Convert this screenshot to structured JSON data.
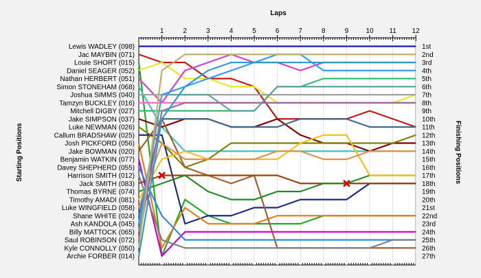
{
  "chart_data": {
    "type": "line",
    "title": "",
    "top_axis_label": "Laps",
    "left_axis_label": "Starting Positions",
    "right_axis_label": "Finishing Positions",
    "x": [
      0,
      1,
      2,
      3,
      4,
      5,
      6,
      7,
      8,
      9,
      10,
      11,
      12
    ],
    "x_tick_labels": [
      "1",
      "2",
      "3",
      "4",
      "5",
      "6",
      "7",
      "8",
      "9",
      "10",
      "11",
      "12"
    ],
    "y_range": [
      1,
      27
    ],
    "finish_labels": [
      "1st",
      "2nd",
      "3rd",
      "4th",
      "5th",
      "6th",
      "7th",
      "8th",
      "9th",
      "10th",
      "11th",
      "12th",
      "13th",
      "14th",
      "15th",
      "16th",
      "17th",
      "18th",
      "19th",
      "20th",
      "21st",
      "22nd",
      "23rd",
      "24th",
      "25th",
      "26th",
      "27th"
    ],
    "series": [
      {
        "name": "Lewis WADLEY (098)",
        "color": "#1a1aa8",
        "positions": [
          1,
          1,
          1,
          1,
          1,
          1,
          1,
          1,
          1,
          1,
          1,
          1,
          1
        ]
      },
      {
        "name": "Jac MAYBIN (071)",
        "color": "#c01818",
        "positions": [
          2,
          3,
          3,
          5,
          5,
          6,
          10,
          10,
          10,
          10,
          9,
          10,
          11
        ]
      },
      {
        "name": "Louie SHORT (015)",
        "color": "#22aa22",
        "positions": [
          3,
          27,
          20,
          22,
          23,
          23,
          23,
          23,
          22,
          22,
          22,
          22,
          22
        ]
      },
      {
        "name": "Daniel SEAGER (052)",
        "color": "#e6e62a",
        "positions": [
          4,
          3,
          5,
          5,
          6,
          6,
          8,
          8,
          8,
          8,
          8,
          8,
          7
        ]
      },
      {
        "name": "Nathan HERBERT (051)",
        "color": "#d040d0",
        "positions": [
          5,
          8,
          4,
          3,
          2,
          3,
          3,
          4,
          3,
          3,
          3,
          3,
          3
        ]
      },
      {
        "name": "Simon STONEHAM (068)",
        "color": "#40c0c0",
        "positions": [
          6,
          11,
          14,
          14,
          14,
          14,
          14,
          14,
          14,
          14,
          14,
          14,
          14
        ]
      },
      {
        "name": "Joshua SIMMS (040)",
        "color": "#a0a0a0",
        "positions": [
          7,
          7,
          7,
          7,
          7,
          7,
          7,
          7,
          7,
          7,
          7,
          7,
          7
        ]
      },
      {
        "name": "Tamzyn BUCKLEY (016)",
        "color": "#ff66cc",
        "positions": [
          8,
          8,
          8,
          8,
          8,
          8,
          8,
          8,
          8,
          8,
          8,
          8,
          8
        ]
      },
      {
        "name": "Mitchell DIGBY (027)",
        "color": "#33bb77",
        "positions": [
          9,
          9,
          9,
          9,
          9,
          9,
          6,
          6,
          5,
          5,
          5,
          5,
          5
        ]
      },
      {
        "name": "Jake SIMPSON (037)",
        "color": "#800000",
        "positions": [
          10,
          11,
          10,
          10,
          11,
          11,
          10,
          12,
          13,
          13,
          14,
          13,
          13
        ]
      },
      {
        "name": "Luke NEWMAN (026)",
        "color": "#808000",
        "positions": [
          11,
          13,
          16,
          15,
          13,
          13,
          13,
          13,
          13,
          13,
          13,
          13,
          12
        ]
      },
      {
        "name": "Callum BRADSHAW (025)",
        "color": "#1f2a80",
        "positions": [
          12,
          12,
          23,
          22,
          22,
          21,
          21,
          20,
          20,
          20,
          18,
          18,
          18
        ]
      },
      {
        "name": "Josh PICKFORD (056)",
        "color": "#e08020",
        "positions": [
          13,
          26,
          21,
          23,
          23,
          23,
          22,
          22,
          22,
          22,
          22,
          22,
          22
        ]
      },
      {
        "name": "Jake BOWMAN (020)",
        "color": "#a06030",
        "positions": [
          14,
          10,
          16,
          17,
          18,
          17,
          26,
          26,
          26,
          26,
          26,
          26,
          26
        ]
      },
      {
        "name": "Benjamin WATKIN (077)",
        "color": "#cc00cc",
        "positions": [
          15,
          27,
          24,
          24,
          24,
          24,
          24,
          24,
          24,
          24,
          24,
          24,
          24
        ]
      },
      {
        "name": "Davey SHEPHERD (055)",
        "color": "#3388dd",
        "positions": [
          16,
          22,
          25,
          25,
          25,
          25,
          25,
          25,
          25,
          25,
          25,
          25,
          25
        ]
      },
      {
        "name": "Harrison SMITH (012)",
        "color": "#808080",
        "positions": [
          17,
          25,
          26,
          26,
          26,
          26,
          26,
          26,
          26,
          26,
          26,
          25,
          25
        ]
      },
      {
        "name": "Jack SMITH (083)",
        "color": "#a04000",
        "positions": [
          18,
          17,
          17,
          17,
          17,
          17,
          17,
          18,
          18,
          18,
          18,
          18,
          18
        ]
      },
      {
        "name": "Thomas BYRNE (074)",
        "color": "#228b22",
        "positions": [
          19,
          18,
          17,
          19,
          20,
          20,
          19,
          19,
          18,
          18,
          17,
          17,
          17
        ]
      },
      {
        "name": "Timothy AMADI (081)",
        "color": "#f0c020",
        "positions": [
          20,
          15,
          14,
          15,
          15,
          15,
          15,
          13,
          12,
          12,
          17,
          17,
          17
        ]
      },
      {
        "name": "Luke WINGFIELD (058)",
        "color": "#e09050",
        "positions": [
          21,
          13,
          15,
          15,
          15,
          15,
          14,
          14,
          15,
          15,
          14,
          14,
          14
        ]
      },
      {
        "name": "Shane WHITE (024)",
        "color": "#446688",
        "positions": [
          22,
          10,
          10,
          10,
          11,
          11,
          11,
          10,
          10,
          10,
          11,
          11,
          11
        ]
      },
      {
        "name": "Ash KANDOLA (045)",
        "color": "#3399ff",
        "positions": [
          23,
          7,
          6,
          5,
          4,
          3,
          2,
          2,
          4,
          4,
          4,
          4,
          4
        ]
      },
      {
        "name": "Billy MATTOCK (065)",
        "color": "#5fa0a0",
        "positions": [
          24,
          7,
          7,
          7,
          9,
          9,
          6,
          6,
          6,
          6,
          6,
          6,
          6
        ]
      },
      {
        "name": "Saul ROBINSON (072)",
        "color": "#9a6a9a",
        "positions": [
          25,
          9,
          8,
          8,
          8,
          8,
          8,
          8,
          8,
          8,
          8,
          8,
          8
        ]
      },
      {
        "name": "Kyle CONNOLLY (050)",
        "color": "#c0b070",
        "positions": [
          26,
          4,
          2,
          2,
          2,
          2,
          2,
          2,
          2,
          2,
          2,
          2,
          2
        ]
      },
      {
        "name": "Archie FORBER (014)",
        "color": "#3399cc",
        "positions": [
          27,
          10,
          6,
          4,
          3,
          3,
          3,
          3,
          3,
          3,
          3,
          3,
          3
        ]
      }
    ],
    "retired_markers": [
      {
        "lap": 1,
        "position": 17,
        "color": "#dd0000"
      },
      {
        "lap": 9,
        "position": 18,
        "color": "#dd0000"
      }
    ],
    "grid": true
  }
}
